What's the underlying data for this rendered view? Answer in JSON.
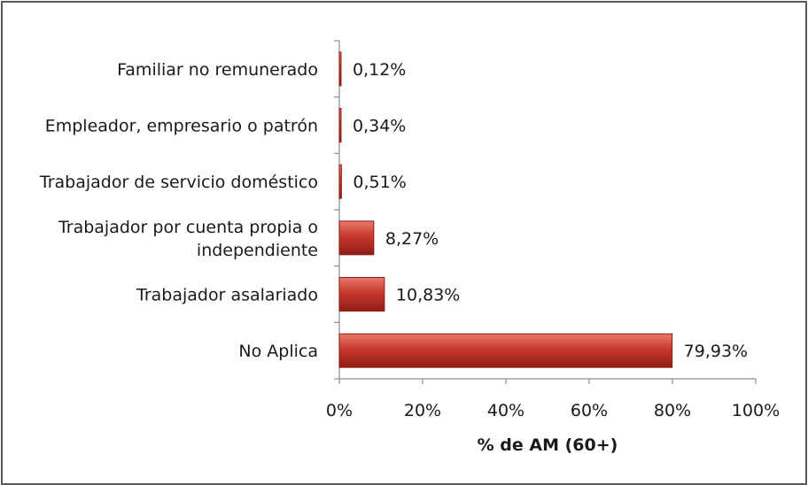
{
  "chart_data": {
    "type": "bar",
    "orientation": "horizontal",
    "categories": [
      [
        "Familiar no remunerado"
      ],
      [
        "Empleador, empresario o patrón"
      ],
      [
        "Trabajador de servicio doméstico"
      ],
      [
        "Trabajador por cuenta propia o",
        "independiente"
      ],
      [
        "Trabajador asalariado"
      ],
      [
        "No Aplica"
      ]
    ],
    "values": [
      0.12,
      0.34,
      0.51,
      8.27,
      10.83,
      79.93
    ],
    "value_labels": [
      "0,12%",
      "0,34%",
      "0,51%",
      "8,27%",
      "10,83%",
      "79,93%"
    ],
    "xlim": [
      0,
      100
    ],
    "xticks": [
      "0%",
      "20%",
      "40%",
      "60%",
      "80%",
      "100%"
    ],
    "xlabel": "% de AM (60+)",
    "ylabel": "",
    "title": "",
    "grid": false,
    "legend": "none",
    "colors": {
      "bar": "#c0392b",
      "bar_light": "#e06a5e",
      "bar_dark": "#8e1f17",
      "axis": "#8c8c8c"
    }
  }
}
